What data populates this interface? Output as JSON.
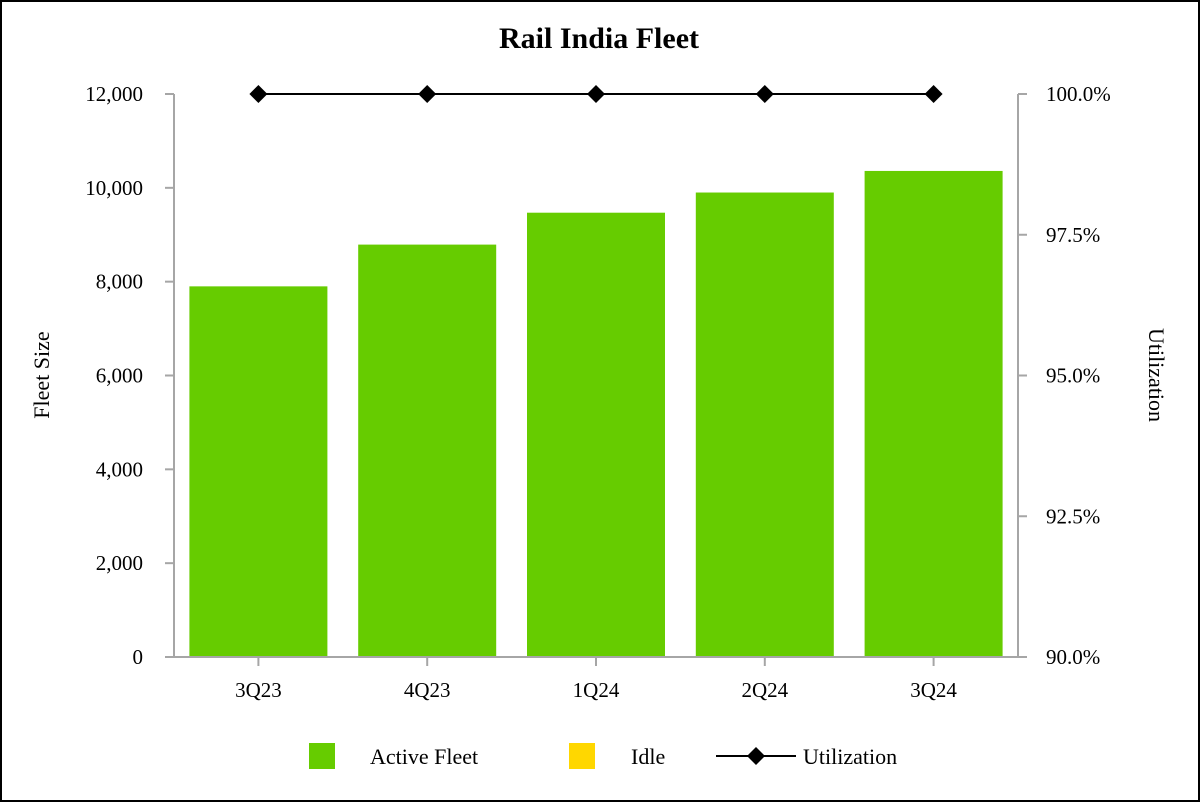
{
  "chart_data": {
    "type": "bar",
    "title": "Rail India Fleet",
    "categories": [
      "3Q23",
      "4Q23",
      "1Q24",
      "2Q24",
      "3Q24"
    ],
    "series": [
      {
        "name": "Active Fleet",
        "kind": "bar",
        "axis": "left",
        "color": "#66cc00",
        "values": [
          7900,
          8790,
          9470,
          9900,
          10360
        ]
      },
      {
        "name": "Idle",
        "kind": "bar",
        "axis": "left",
        "color": "#ffd700",
        "values": [
          0,
          0,
          0,
          0,
          0
        ]
      },
      {
        "name": "Utilization",
        "kind": "line",
        "axis": "right",
        "color": "#000000",
        "marker": "diamond",
        "values": [
          100.0,
          100.0,
          100.0,
          100.0,
          100.0
        ]
      }
    ],
    "ylabel": "Fleet Size",
    "ylim": [
      0,
      12000
    ],
    "yticks": [
      0,
      2000,
      4000,
      6000,
      8000,
      10000,
      12000
    ],
    "ytick_labels": [
      "0",
      "2,000",
      "4,000",
      "6,000",
      "8,000",
      "10,000",
      "12,000"
    ],
    "y2label": "Utilization",
    "y2lim": [
      90.0,
      100.0
    ],
    "y2ticks": [
      90.0,
      92.5,
      95.0,
      97.5,
      100.0
    ],
    "y2tick_labels": [
      "90.0%",
      "92.5%",
      "95.0%",
      "97.5%",
      "100.0%"
    ],
    "legend": {
      "placement": "bottom",
      "entries": [
        "Active Fleet",
        "Idle",
        "Utilization"
      ]
    },
    "grid": false
  }
}
